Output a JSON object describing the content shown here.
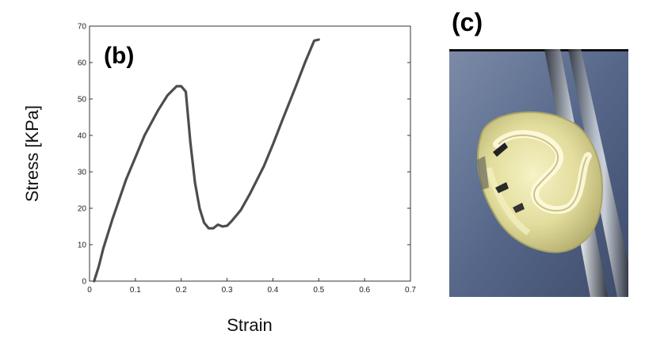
{
  "chart_data": {
    "type": "line",
    "panel_label": "(b)",
    "title": "",
    "xlabel": "Strain",
    "ylabel": "Stress [KPa]",
    "xlim": [
      0,
      0.7
    ],
    "ylim": [
      0,
      70
    ],
    "xticks": [
      "0",
      "0.1",
      "0.2",
      "0.3",
      "0.4",
      "0.5",
      "0.6",
      "0.7"
    ],
    "yticks": [
      "0",
      "10",
      "20",
      "30",
      "40",
      "50",
      "60",
      "70"
    ],
    "grid": false,
    "series": [
      {
        "color": "#4d4d4d",
        "x": [
          0.01,
          0.02,
          0.03,
          0.05,
          0.08,
          0.1,
          0.12,
          0.15,
          0.17,
          0.19,
          0.2,
          0.21,
          0.22,
          0.23,
          0.24,
          0.25,
          0.26,
          0.27,
          0.28,
          0.29,
          0.3,
          0.31,
          0.33,
          0.35,
          0.38,
          0.4,
          0.42,
          0.45,
          0.47,
          0.49,
          0.5
        ],
        "y": [
          0,
          4,
          9,
          17,
          28,
          34,
          40,
          47,
          51,
          53.5,
          53.5,
          52,
          38,
          27,
          20,
          16,
          14.5,
          14.5,
          15.5,
          15,
          15.2,
          16.5,
          19.5,
          24,
          31.5,
          37.5,
          44,
          53.5,
          60,
          66,
          66.3
        ]
      }
    ]
  },
  "photo": {
    "panel_label": "(c)",
    "subject": "rolled-tube-specimen-photo"
  }
}
